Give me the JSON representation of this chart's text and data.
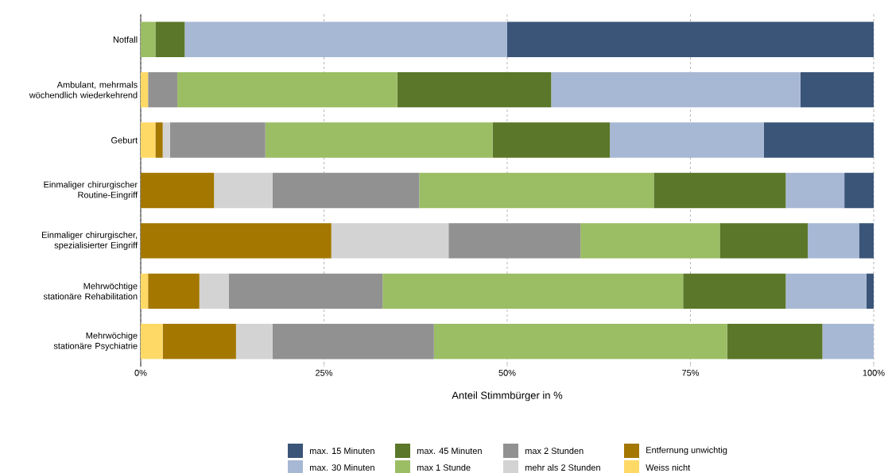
{
  "chart_data": {
    "type": "bar",
    "orientation": "horizontal",
    "stacked": true,
    "xlabel": "Anteil Stimmbürger in %",
    "categories": [
      "Notfall",
      "Ambulant, mehrmals wöchendlich wiederkehrend",
      "Geburt",
      "Einmaliger chirurgischer Routine-Eingriff",
      "Einmaliger chirurgischer, spezialisierter Eingriff",
      "Mehrwöchtige stationäre Rehabilitation",
      "Mehrwöchige stationäre Psychiatrie"
    ],
    "series": [
      {
        "name": "Weiss nicht",
        "color": "#ffd966",
        "values": [
          0,
          1,
          2,
          0,
          0,
          1,
          3
        ]
      },
      {
        "name": "Entfernung unwichtig",
        "color": "#a37700",
        "values": [
          0,
          0,
          1,
          10,
          26,
          7,
          10
        ]
      },
      {
        "name": "mehr als 2 Stunden",
        "color": "#d3d3d3",
        "values": [
          0,
          0,
          1,
          8,
          16,
          4,
          5
        ]
      },
      {
        "name": "max 2 Stunden",
        "color": "#919191",
        "values": [
          0,
          4,
          13,
          20,
          18,
          21,
          22
        ]
      },
      {
        "name": "max 1 Stunde",
        "color": "#9bbd64",
        "values": [
          2,
          30,
          31,
          32,
          19,
          41,
          40
        ]
      },
      {
        "name": "max. 45 Minuten",
        "color": "#5b7729",
        "values": [
          4,
          21,
          16,
          18,
          12,
          14,
          13
        ]
      },
      {
        "name": "max. 30 Minuten",
        "color": "#a7b8d4",
        "values": [
          44,
          34,
          21,
          8,
          7,
          11,
          7
        ]
      },
      {
        "name": "max. 15 Minuten",
        "color": "#3b5579",
        "values": [
          50,
          10,
          15,
          4,
          2,
          1,
          0
        ]
      }
    ],
    "xlim": [
      0,
      100
    ],
    "xticks": [
      {
        "value": 0,
        "label": "0%"
      },
      {
        "value": 25,
        "label": "25%"
      },
      {
        "value": 50,
        "label": "50%"
      },
      {
        "value": 75,
        "label": "75%"
      },
      {
        "value": 100,
        "label": "100%"
      }
    ],
    "grid": "x",
    "legend": "bottom"
  }
}
